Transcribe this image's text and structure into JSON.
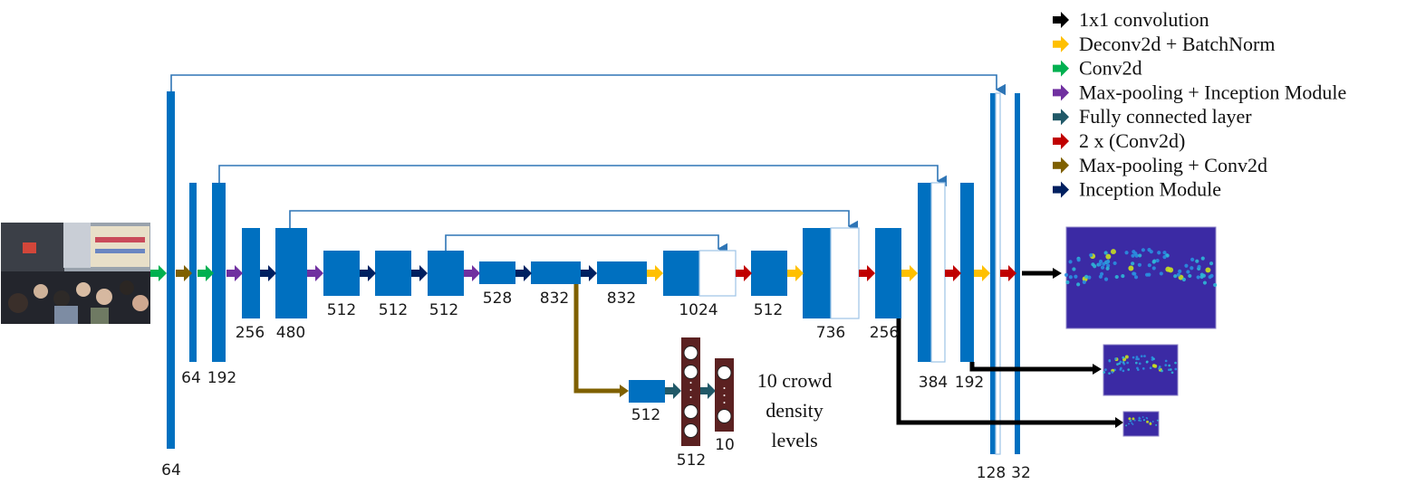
{
  "colors": {
    "block": "#0070C0",
    "block_outline": "#9DC3E6",
    "skip": "#2E75B6",
    "fc_node_bg": "#5B2121",
    "density_bg": "#3B2AA4",
    "one_by_one": "#000000",
    "deconv": "#FFC000",
    "conv": "#00B050",
    "maxpool_inception": "#7030A0",
    "fully_connected": "#215968",
    "double_conv": "#C00000",
    "maxpool_conv": "#7F6000",
    "inception": "#002060"
  },
  "legend": [
    {
      "label": "1x1 convolution",
      "color_key": "one_by_one",
      "icon": "arrow-right-icon"
    },
    {
      "label": "Deconv2d + BatchNorm",
      "color_key": "deconv",
      "icon": "arrow-right-icon"
    },
    {
      "label": "Conv2d",
      "color_key": "conv",
      "icon": "arrow-right-icon"
    },
    {
      "label": "Max-pooling + Inception Module",
      "color_key": "maxpool_inception",
      "icon": "arrow-right-icon"
    },
    {
      "label": "Fully connected layer",
      "color_key": "fully_connected",
      "icon": "arrow-right-icon"
    },
    {
      "label": "2 x (Conv2d)",
      "color_key": "double_conv",
      "icon": "arrow-right-icon"
    },
    {
      "label": "Max-pooling +  Conv2d",
      "color_key": "maxpool_conv",
      "icon": "arrow-right-icon"
    },
    {
      "label": "Inception Module",
      "color_key": "inception",
      "icon": "arrow-right-icon"
    }
  ],
  "input_image": {
    "description": "crowd-street-photo"
  },
  "encoder_blocks": [
    {
      "channels": "64"
    },
    {
      "channels": "64"
    },
    {
      "channels": "192"
    },
    {
      "channels": "256"
    },
    {
      "channels": "480"
    },
    {
      "channels": "512"
    },
    {
      "channels": "512"
    },
    {
      "channels": "512"
    },
    {
      "channels": "528"
    },
    {
      "channels": "832"
    },
    {
      "channels": "832"
    }
  ],
  "decoder_blocks": [
    {
      "channels": "1024"
    },
    {
      "channels": "512"
    },
    {
      "channels": "736"
    },
    {
      "channels": "256"
    },
    {
      "channels": "384"
    },
    {
      "channels": "192"
    },
    {
      "channels": "128"
    },
    {
      "channels": "32"
    }
  ],
  "classifier": {
    "conv_block": "512",
    "fc1": "512",
    "fc2": "10",
    "caption_lines": [
      "10 crowd",
      "density",
      "levels"
    ]
  },
  "outputs": [
    {
      "name": "density-map-full"
    },
    {
      "name": "density-map-half"
    },
    {
      "name": "density-map-quarter"
    }
  ]
}
